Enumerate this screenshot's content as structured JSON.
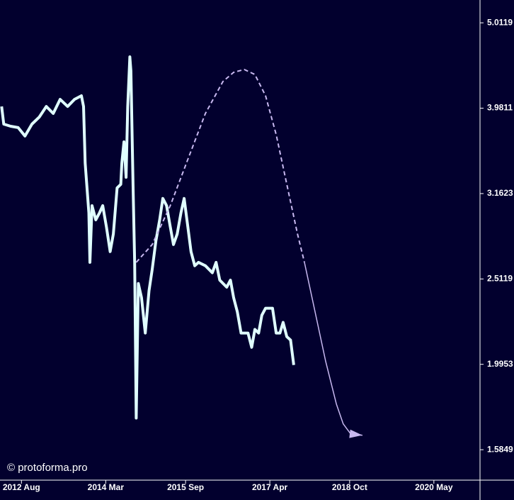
{
  "chart_data": {
    "type": "line",
    "log": true,
    "annotation": "© protoforma.pro",
    "xlim": [
      2012.18,
      2021.2
    ],
    "ylim": [
      1.46,
      5.33
    ],
    "xticks": [
      {
        "value": 2012.583,
        "label": "2012 Aug"
      },
      {
        "value": 2014.167,
        "label": "2014 Mar"
      },
      {
        "value": 2015.667,
        "label": "2015 Sep"
      },
      {
        "value": 2017.25,
        "label": "2017 Apr"
      },
      {
        "value": 2018.75,
        "label": "2018 Oct"
      },
      {
        "value": 2020.333,
        "label": "2020 May"
      }
    ],
    "yticks": [
      1.5849,
      1.9953,
      2.5119,
      3.1623,
      3.9811,
      5.0119
    ],
    "series": [
      {
        "color": "#e0ffff",
        "width": 4,
        "dashed": false,
        "x": [
          2012.21,
          2012.25,
          2012.38,
          2012.52,
          2012.65,
          2012.78,
          2012.92,
          2013.05,
          2013.18,
          2013.31,
          2013.45,
          2013.58,
          2013.71,
          2013.75,
          2013.78,
          2013.85,
          2013.87,
          2013.91,
          2013.98,
          2014.05,
          2014.11,
          2014.18,
          2014.25,
          2014.31,
          2014.38,
          2014.45,
          2014.47,
          2014.51,
          2014.55,
          2014.58,
          2014.62,
          2014.64,
          2014.68,
          2014.71,
          2014.74,
          2014.78,
          2014.84,
          2014.91,
          2014.98,
          2015.04,
          2015.11,
          2015.18,
          2015.24,
          2015.31,
          2015.38,
          2015.44,
          2015.51,
          2015.58,
          2015.64,
          2015.71,
          2015.77,
          2015.84,
          2015.91,
          2016.04,
          2016.17,
          2016.24,
          2016.31,
          2016.44,
          2016.51,
          2016.57,
          2016.64,
          2016.71,
          2016.84,
          2016.91,
          2016.97,
          2017.04,
          2017.1,
          2017.17,
          2017.3,
          2017.37,
          2017.44,
          2017.5,
          2017.57,
          2017.64,
          2017.7
        ],
        "values": [
          4.0,
          3.814,
          3.792,
          3.778,
          3.693,
          3.814,
          3.888,
          4.0,
          3.925,
          4.077,
          4.0,
          4.077,
          4.117,
          4.0,
          3.433,
          3.003,
          2.627,
          3.061,
          2.946,
          3.003,
          3.061,
          2.891,
          2.704,
          2.836,
          3.211,
          3.242,
          3.433,
          3.636,
          3.304,
          4.0,
          4.573,
          4.402,
          3.242,
          2.627,
          1.726,
          2.481,
          2.388,
          2.171,
          2.434,
          2.578,
          2.783,
          2.946,
          3.121,
          3.061,
          2.891,
          2.756,
          2.836,
          3.003,
          3.121,
          2.891,
          2.704,
          2.603,
          2.627,
          2.603,
          2.554,
          2.627,
          2.504,
          2.457,
          2.504,
          2.388,
          2.299,
          2.171,
          2.171,
          2.089,
          2.192,
          2.171,
          2.277,
          2.321,
          2.321,
          2.171,
          2.171,
          2.234,
          2.15,
          2.13,
          1.992
        ]
      },
      {
        "color": "#c8b8f0",
        "width": 2,
        "dashed": true,
        "x": [
          2014.74,
          2015.04,
          2015.38,
          2015.71,
          2016.04,
          2016.37,
          2016.57,
          2016.77,
          2016.97,
          2017.17,
          2017.37,
          2017.57,
          2017.77,
          2017.9
        ],
        "values": [
          2.627,
          2.756,
          3.061,
          3.467,
          3.925,
          4.278,
          4.385,
          4.419,
          4.36,
          4.117,
          3.707,
          3.242,
          2.836,
          2.627
        ]
      },
      {
        "color": "#c8b8f0",
        "width": 1.5,
        "dashed": false,
        "arrow": true,
        "x": [
          2017.9,
          2018.1,
          2018.3,
          2018.5,
          2018.63,
          2018.77,
          2018.99
        ],
        "values": [
          2.627,
          2.299,
          2.011,
          1.793,
          1.699,
          1.654,
          1.648
        ]
      }
    ]
  }
}
